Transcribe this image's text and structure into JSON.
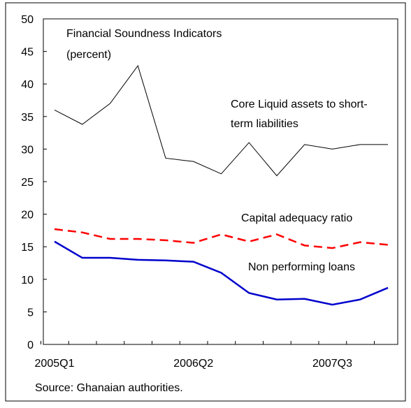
{
  "chart_data": {
    "type": "line",
    "title": [
      "Financial Soundness Indicators",
      "(percent)"
    ],
    "source": "Source: Ghanaian authorities.",
    "categories": [
      "2005Q1",
      null,
      null,
      null,
      null,
      "2006Q2",
      null,
      null,
      null,
      null,
      "2007Q3",
      null,
      null
    ],
    "ylim": [
      0,
      50
    ],
    "yticks": [
      0,
      5,
      10,
      15,
      20,
      25,
      30,
      35,
      40,
      45,
      50
    ],
    "series": [
      {
        "label": [
          "Core Liquid assets to short-",
          "term liabilities"
        ],
        "color": "#000000",
        "dash": false,
        "values": [
          36,
          33.8,
          37,
          42.8,
          28.6,
          28.1,
          26.2,
          31,
          25.9,
          30.7,
          30,
          30.7,
          30.7
        ]
      },
      {
        "label": [
          "Capital adequacy ratio"
        ],
        "color": "#ff0000",
        "dash": true,
        "values": [
          17.7,
          17.2,
          16.2,
          16.2,
          16,
          15.6,
          16.9,
          15.8,
          16.9,
          15.2,
          14.8,
          15.7,
          15.3
        ]
      },
      {
        "label": [
          "Non performing loans"
        ],
        "color": "#0000cc",
        "dash": false,
        "values": [
          15.8,
          13.3,
          13.3,
          13,
          12.9,
          12.7,
          11,
          7.9,
          6.9,
          7,
          6.1,
          6.9,
          8.7
        ]
      }
    ]
  }
}
